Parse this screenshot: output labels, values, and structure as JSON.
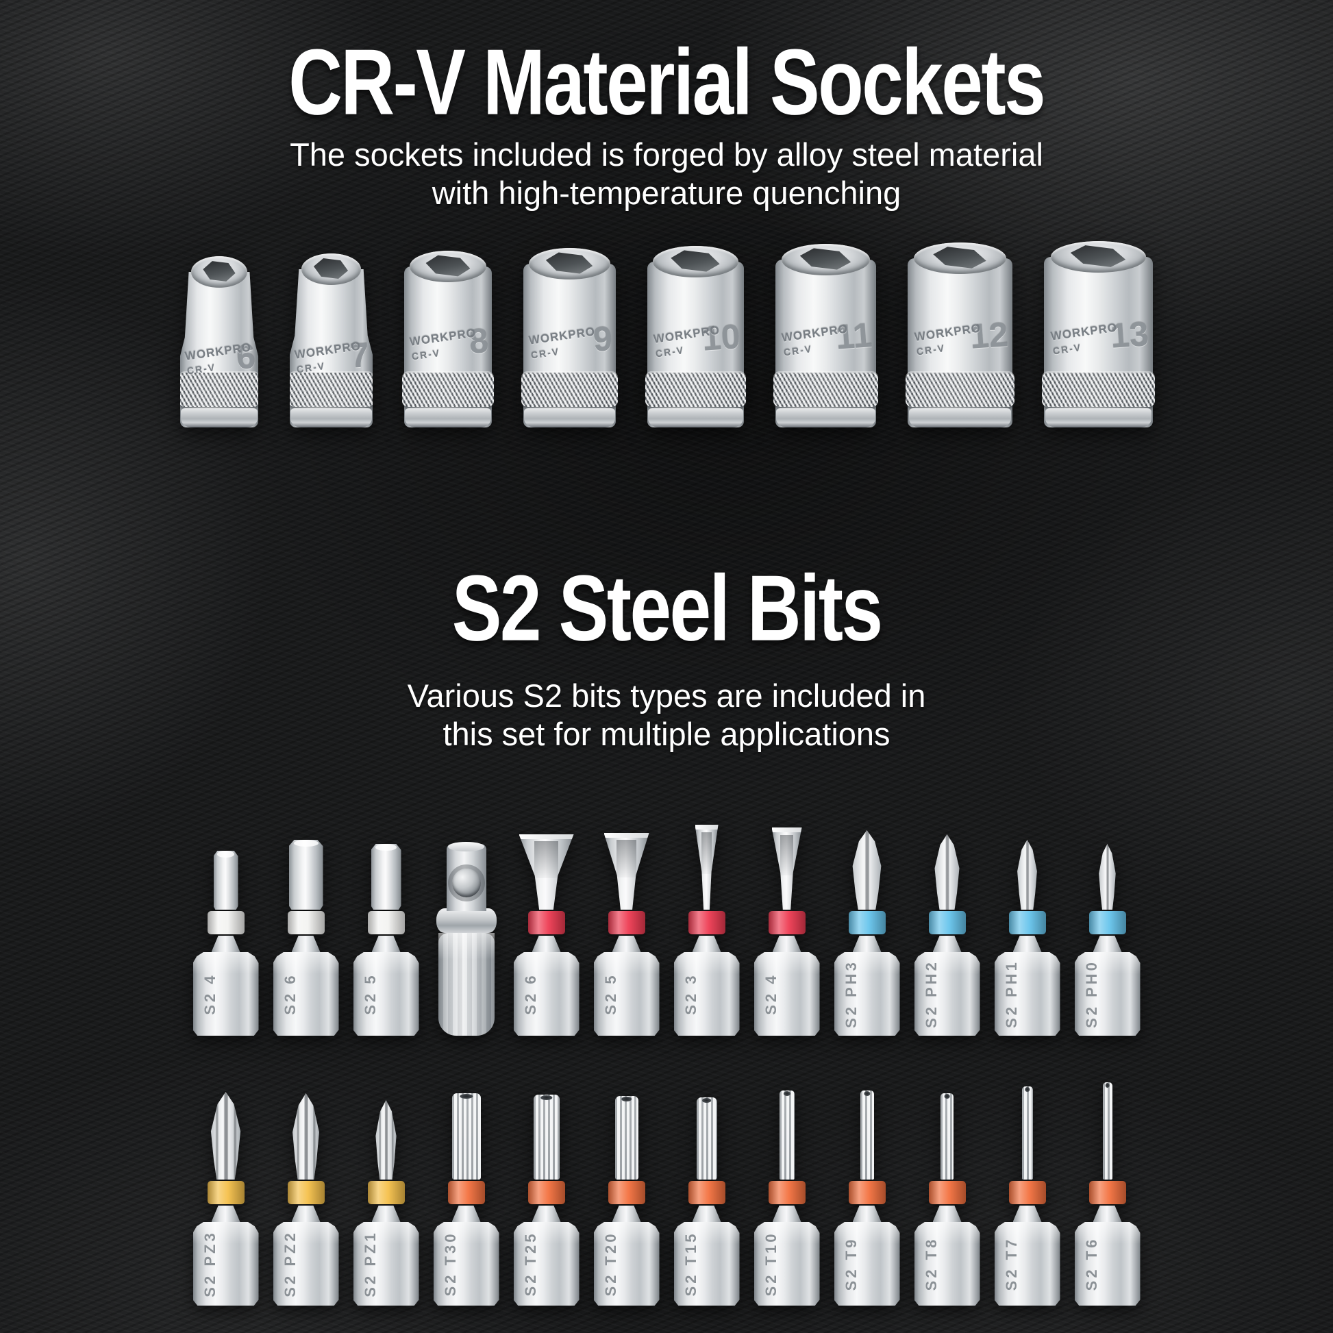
{
  "page": {
    "background_color": "#1a1b1c",
    "text_color": "#ffffff"
  },
  "sections": [
    {
      "id": "sockets",
      "title": "CR-V Material Sockets",
      "subtitle_lines": [
        "The sockets included  is forged by alloy steel material",
        "with high-temperature quenching"
      ]
    },
    {
      "id": "bits",
      "title": "S2 Steel Bits",
      "subtitle_lines": [
        "Various S2 bits types are included in",
        "this set for multiple applications"
      ]
    }
  ],
  "sockets": {
    "brand": "WORKPRO",
    "material_mark": "CR-V",
    "items": [
      {
        "size": "6"
      },
      {
        "size": "7"
      },
      {
        "size": "8"
      },
      {
        "size": "9"
      },
      {
        "size": "10"
      },
      {
        "size": "11"
      },
      {
        "size": "12"
      },
      {
        "size": "13"
      }
    ]
  },
  "bits": {
    "band_colors": {
      "hex": "#f3f3f1",
      "slotted": "#ee3b52",
      "phillips": "#66c4ec",
      "pozidriv": "#f5c04a",
      "torx": "#f3703e"
    },
    "rows": [
      {
        "items": [
          {
            "type": "hex",
            "label": "S2 4",
            "band": "#f3f3f1"
          },
          {
            "type": "hex",
            "label": "S2 6",
            "band": "#f3f3f1"
          },
          {
            "type": "hex",
            "label": "S2 5",
            "band": "#f3f3f1"
          },
          {
            "type": "adapter",
            "label": "",
            "band": null
          },
          {
            "type": "slotted",
            "label": "S2 6",
            "band": "#ee3b52"
          },
          {
            "type": "slotted",
            "label": "S2 5",
            "band": "#ee3b52"
          },
          {
            "type": "slotted",
            "label": "S2 3",
            "band": "#ee3b52"
          },
          {
            "type": "slotted",
            "label": "S2 4",
            "band": "#ee3b52"
          },
          {
            "type": "phillips",
            "label": "S2 PH3",
            "band": "#66c4ec"
          },
          {
            "type": "phillips",
            "label": "S2 PH2",
            "band": "#66c4ec"
          },
          {
            "type": "phillips",
            "label": "S2 PH1",
            "band": "#66c4ec"
          },
          {
            "type": "phillips",
            "label": "S2 PH0",
            "band": "#66c4ec"
          }
        ]
      },
      {
        "items": [
          {
            "type": "pozidriv",
            "label": "S2 PZ3",
            "band": "#f5c04a"
          },
          {
            "type": "pozidriv",
            "label": "S2 PZ2",
            "band": "#f5c04a"
          },
          {
            "type": "pozidriv",
            "label": "S2 PZ1",
            "band": "#f5c04a"
          },
          {
            "type": "torx",
            "label": "S2 T30",
            "band": "#f3703e"
          },
          {
            "type": "torx",
            "label": "S2 T25",
            "band": "#f3703e"
          },
          {
            "type": "torx",
            "label": "S2 T20",
            "band": "#f3703e"
          },
          {
            "type": "torx",
            "label": "S2 T15",
            "band": "#f3703e"
          },
          {
            "type": "torx-small",
            "label": "S2 T10",
            "band": "#f3703e"
          },
          {
            "type": "torx-small",
            "label": "S2 T9",
            "band": "#f3703e"
          },
          {
            "type": "torx-small",
            "label": "S2 T8",
            "band": "#f3703e"
          },
          {
            "type": "torx-small",
            "label": "S2 T7",
            "band": "#f3703e"
          },
          {
            "type": "torx-small",
            "label": "S2 T6",
            "band": "#f3703e"
          }
        ]
      }
    ]
  }
}
